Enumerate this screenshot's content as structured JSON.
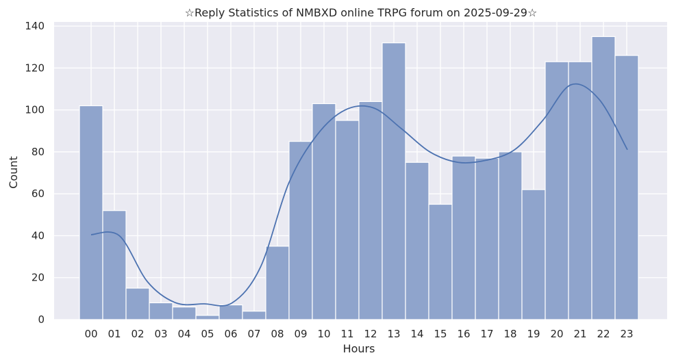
{
  "chart_data": {
    "type": "bar",
    "title": "☆Reply Statistics of NMBXD online TRPG forum on 2025-09-29☆",
    "xlabel": "Hours",
    "ylabel": "Count",
    "categories": [
      "00",
      "01",
      "02",
      "03",
      "04",
      "05",
      "06",
      "07",
      "08",
      "09",
      "10",
      "11",
      "12",
      "13",
      "14",
      "15",
      "16",
      "17",
      "18",
      "19",
      "20",
      "21",
      "22",
      "23"
    ],
    "values": [
      102,
      52,
      15,
      8,
      6,
      2,
      7,
      4,
      35,
      85,
      103,
      95,
      104,
      132,
      75,
      55,
      78,
      77,
      80,
      62,
      123,
      123,
      135,
      126
    ],
    "yticks": [
      0,
      20,
      40,
      60,
      80,
      100,
      120,
      140
    ],
    "ylim": [
      0,
      142
    ],
    "grid": true,
    "kde_line": [
      40.5,
      40,
      18,
      8,
      7.5,
      8,
      25,
      65,
      88,
      100,
      101,
      91,
      80,
      75,
      76,
      81,
      95,
      112,
      105,
      81
    ],
    "colors": {
      "bar": "#8fa4cc",
      "bar_edge": "#ffffff",
      "line": "#4c72b0",
      "background": "#eaeaf2",
      "grid": "#ffffff"
    }
  }
}
